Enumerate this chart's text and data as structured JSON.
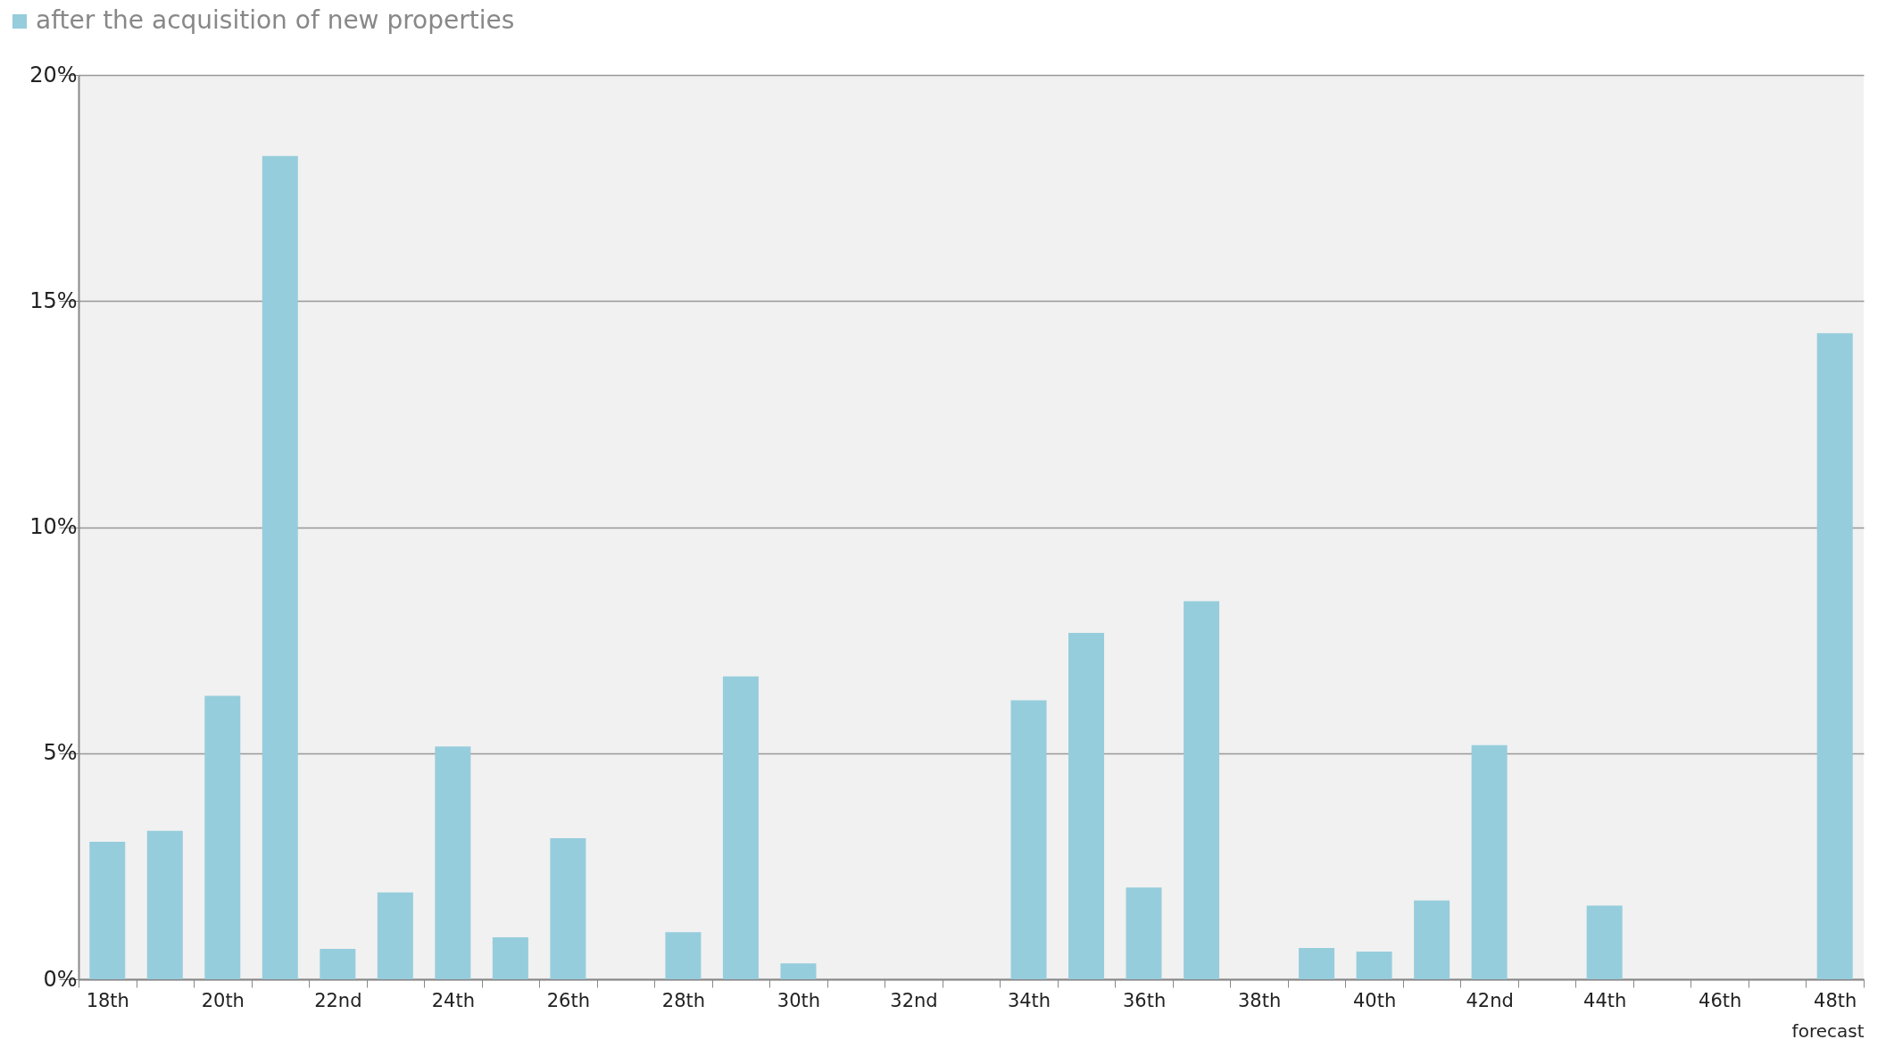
{
  "chart_data": {
    "type": "bar",
    "categories": [
      "18th",
      null,
      "20th",
      null,
      "22nd",
      null,
      "24th",
      null,
      "26th",
      null,
      "28th",
      null,
      "30th",
      null,
      "32nd",
      null,
      "34th",
      null,
      "36th",
      null,
      "38th",
      null,
      "40th",
      null,
      "42nd",
      null,
      "44th",
      null,
      "46th",
      null,
      "48th"
    ],
    "series": [
      {
        "name": "after the acquisition of new properties",
        "color": "#96cddc",
        "values": [
          3.04,
          3.28,
          6.27,
          18.21,
          0.67,
          1.92,
          5.15,
          0.93,
          3.12,
          0,
          1.04,
          6.7,
          0.35,
          0,
          0,
          0,
          6.17,
          7.66,
          2.03,
          8.36,
          0,
          0.69,
          0.61,
          1.74,
          5.18,
          0,
          1.63,
          0,
          0,
          0,
          14.29
        ]
      }
    ],
    "ylim": [
      0,
      20
    ],
    "yticks": [
      {
        "value": 0,
        "label": "0%"
      },
      {
        "value": 5,
        "label": "5%"
      },
      {
        "value": 10,
        "label": "10%"
      },
      {
        "value": 15,
        "label": "15%"
      },
      {
        "value": 20,
        "label": "20%"
      }
    ],
    "grid": "y",
    "legend": "top left",
    "annotations": [
      "forecast"
    ]
  }
}
